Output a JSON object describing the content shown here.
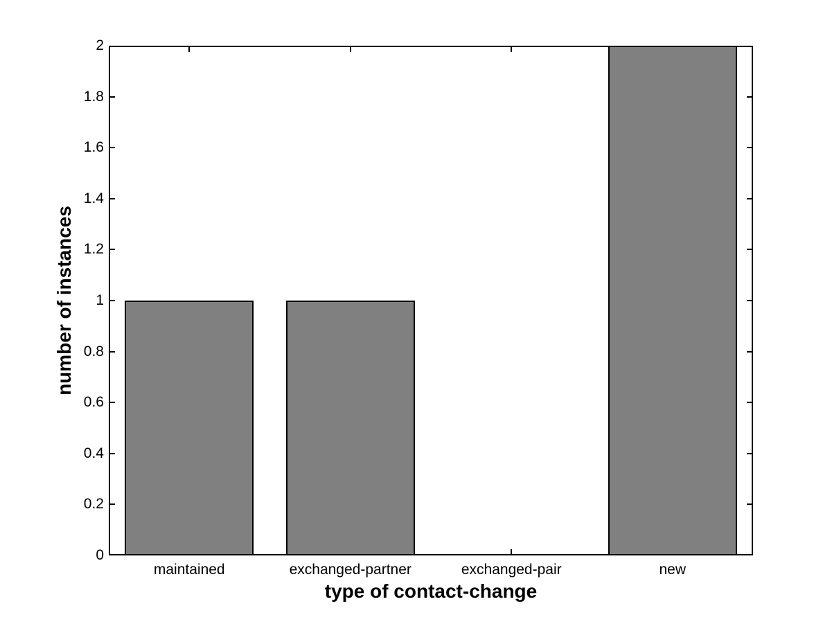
{
  "figure": {
    "background_color": "#ffffff"
  },
  "chart_data": {
    "type": "bar",
    "title": "",
    "xlabel": "type of contact-change",
    "ylabel": "number of instances",
    "categories": [
      "maintained",
      "exchanged-partner",
      "exchanged-pair",
      "new"
    ],
    "values": [
      1,
      1,
      0,
      2
    ],
    "ylim": [
      0,
      2
    ],
    "yticks": [
      0,
      0.2,
      0.4,
      0.6,
      0.8,
      1,
      1.2,
      1.4,
      1.6,
      1.8,
      2
    ],
    "ytick_labels": [
      "0",
      "0.2",
      "0.4",
      "0.6",
      "0.8",
      "1",
      "1.2",
      "1.4",
      "1.6",
      "1.8",
      "2"
    ],
    "bar_width_fraction": 0.8,
    "bar_fill_color": "#808080",
    "bar_edge_color": "#000000",
    "axis_color": "#000000",
    "grid": false,
    "legend": null,
    "tick_direction": "in",
    "box": true
  }
}
